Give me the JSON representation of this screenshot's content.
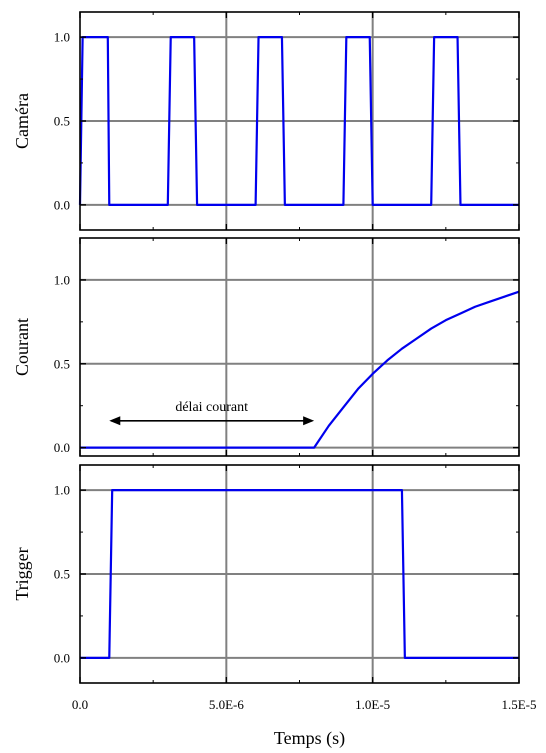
{
  "colors": {
    "series": "#0000ee",
    "grid": "#808080",
    "axis": "#000000",
    "annotation": "#000000"
  },
  "chart_data": {
    "type": "line",
    "xlabel": "Temps (s)",
    "xlim": [
      0,
      1.5e-05
    ],
    "x_tick_values": [
      0,
      5e-06,
      1e-05,
      1.5e-05
    ],
    "x_tick_labels": [
      "0.0",
      "5.0E-6",
      "1.0E-5",
      "1.5E-5"
    ],
    "grid": true,
    "panels": [
      {
        "ylabel": "Caméra",
        "ylim": [
          -0.15,
          1.15
        ],
        "y_tick_values": [
          0,
          0.5,
          1
        ],
        "y_tick_labels": [
          "0.0",
          "0.5",
          "1.0"
        ],
        "series": [
          {
            "x": [
              0,
              9e-08,
              1.5e-07,
              8.5e-07,
              9.5e-07,
              1e-06,
              3e-06,
              3.1e-06,
              3.9e-06,
              4e-06,
              6e-06,
              6.1e-06,
              6.9e-06,
              7e-06,
              9e-06,
              9.1e-06,
              9.9e-06,
              1e-05,
              1.2e-05,
              1.21e-05,
              1.29e-05,
              1.3e-05,
              1.5e-05
            ],
            "y": [
              0,
              1,
              1,
              1,
              1,
              0,
              0,
              1,
              1,
              0,
              0,
              1,
              1,
              0,
              0,
              1,
              1,
              0,
              0,
              1,
              1,
              0,
              0
            ]
          }
        ]
      },
      {
        "ylabel": "Courant",
        "ylim": [
          -0.05,
          1.25
        ],
        "y_tick_values": [
          0,
          0.5,
          1
        ],
        "y_tick_labels": [
          "0.0",
          "0.5",
          "1.0"
        ],
        "annotation": {
          "text": "délai courant",
          "x_start": 1e-06,
          "x_end": 8e-06,
          "y": 0.16
        },
        "series": [
          {
            "x": [
              0,
              8e-06,
              8.5e-06,
              9e-06,
              9.5e-06,
              1e-05,
              1.05e-05,
              1.1e-05,
              1.15e-05,
              1.2e-05,
              1.25e-05,
              1.3e-05,
              1.35e-05,
              1.4e-05,
              1.45e-05,
              1.5e-05
            ],
            "y": [
              0,
              0,
              0.13,
              0.24,
              0.35,
              0.44,
              0.52,
              0.59,
              0.65,
              0.71,
              0.76,
              0.8,
              0.84,
              0.87,
              0.9,
              0.93
            ]
          }
        ]
      },
      {
        "ylabel": "Trigger",
        "ylim": [
          -0.15,
          1.15
        ],
        "y_tick_values": [
          0,
          0.5,
          1
        ],
        "y_tick_labels": [
          "0.0",
          "0.5",
          "1.0"
        ],
        "series": [
          {
            "x": [
              0,
              1e-06,
              1.1e-06,
              1.1e-05,
              1.11e-05,
              1.5e-05
            ],
            "y": [
              0,
              0,
              1,
              1,
              0,
              0
            ]
          }
        ]
      }
    ]
  }
}
